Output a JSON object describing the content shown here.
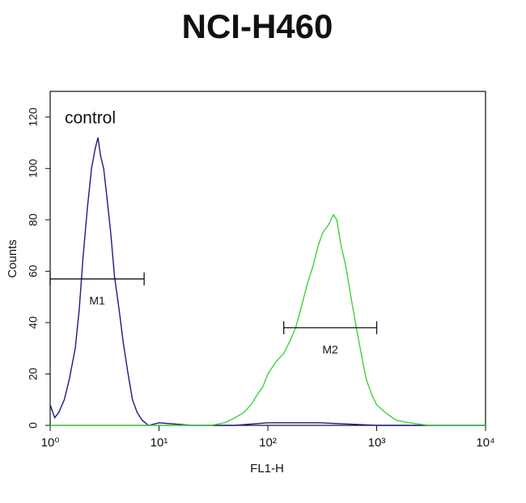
{
  "chart_data": {
    "type": "line",
    "title": "NCI-H460",
    "x_label": "FL1-H",
    "y_label": "Counts",
    "annotation": "control",
    "xscale": "log",
    "xlim": [
      1,
      10000
    ],
    "ylim": [
      0,
      130
    ],
    "xticks": [
      {
        "value": 1,
        "label": "10⁰"
      },
      {
        "value": 10,
        "label": "10¹"
      },
      {
        "value": 100,
        "label": "10²"
      },
      {
        "value": 1000,
        "label": "10³"
      },
      {
        "value": 10000,
        "label": "10⁴"
      }
    ],
    "yticks": [
      0,
      20,
      40,
      60,
      80,
      100,
      120
    ],
    "series": [
      {
        "color": "#1c1c80",
        "x": [
          1.0,
          1.1,
          1.2,
          1.35,
          1.5,
          1.7,
          1.85,
          2.0,
          2.2,
          2.4,
          2.6,
          2.75,
          2.9,
          3.1,
          3.3,
          3.6,
          3.9,
          4.3,
          4.7,
          5.2,
          5.7,
          6.3,
          7,
          8,
          10,
          20,
          50,
          100,
          300,
          1000,
          10000
        ],
        "values": [
          8,
          3,
          5,
          10,
          18,
          30,
          45,
          65,
          85,
          100,
          108,
          112,
          105,
          100,
          90,
          75,
          58,
          45,
          32,
          20,
          10,
          5,
          2,
          0,
          1,
          0,
          0,
          1,
          1,
          0,
          0
        ]
      },
      {
        "color": "#3fd23f",
        "x": [
          1,
          10,
          30,
          40,
          50,
          60,
          70,
          80,
          90,
          100,
          120,
          140,
          160,
          180,
          200,
          230,
          260,
          290,
          320,
          360,
          400,
          430,
          470,
          520,
          580,
          650,
          720,
          800,
          900,
          1000,
          1200,
          1500,
          2000,
          3000,
          10000
        ],
        "values": [
          0,
          0,
          0,
          1,
          3,
          5,
          8,
          12,
          15,
          20,
          25,
          28,
          33,
          38,
          45,
          55,
          62,
          70,
          75,
          78,
          82,
          80,
          70,
          62,
          50,
          38,
          28,
          18,
          12,
          8,
          5,
          2,
          1,
          0,
          0
        ]
      }
    ],
    "markers": [
      {
        "label": "M1",
        "range": [
          1,
          7.3
        ],
        "y": 57
      },
      {
        "label": "M2",
        "range": [
          140,
          1000
        ],
        "y": 38
      }
    ]
  }
}
